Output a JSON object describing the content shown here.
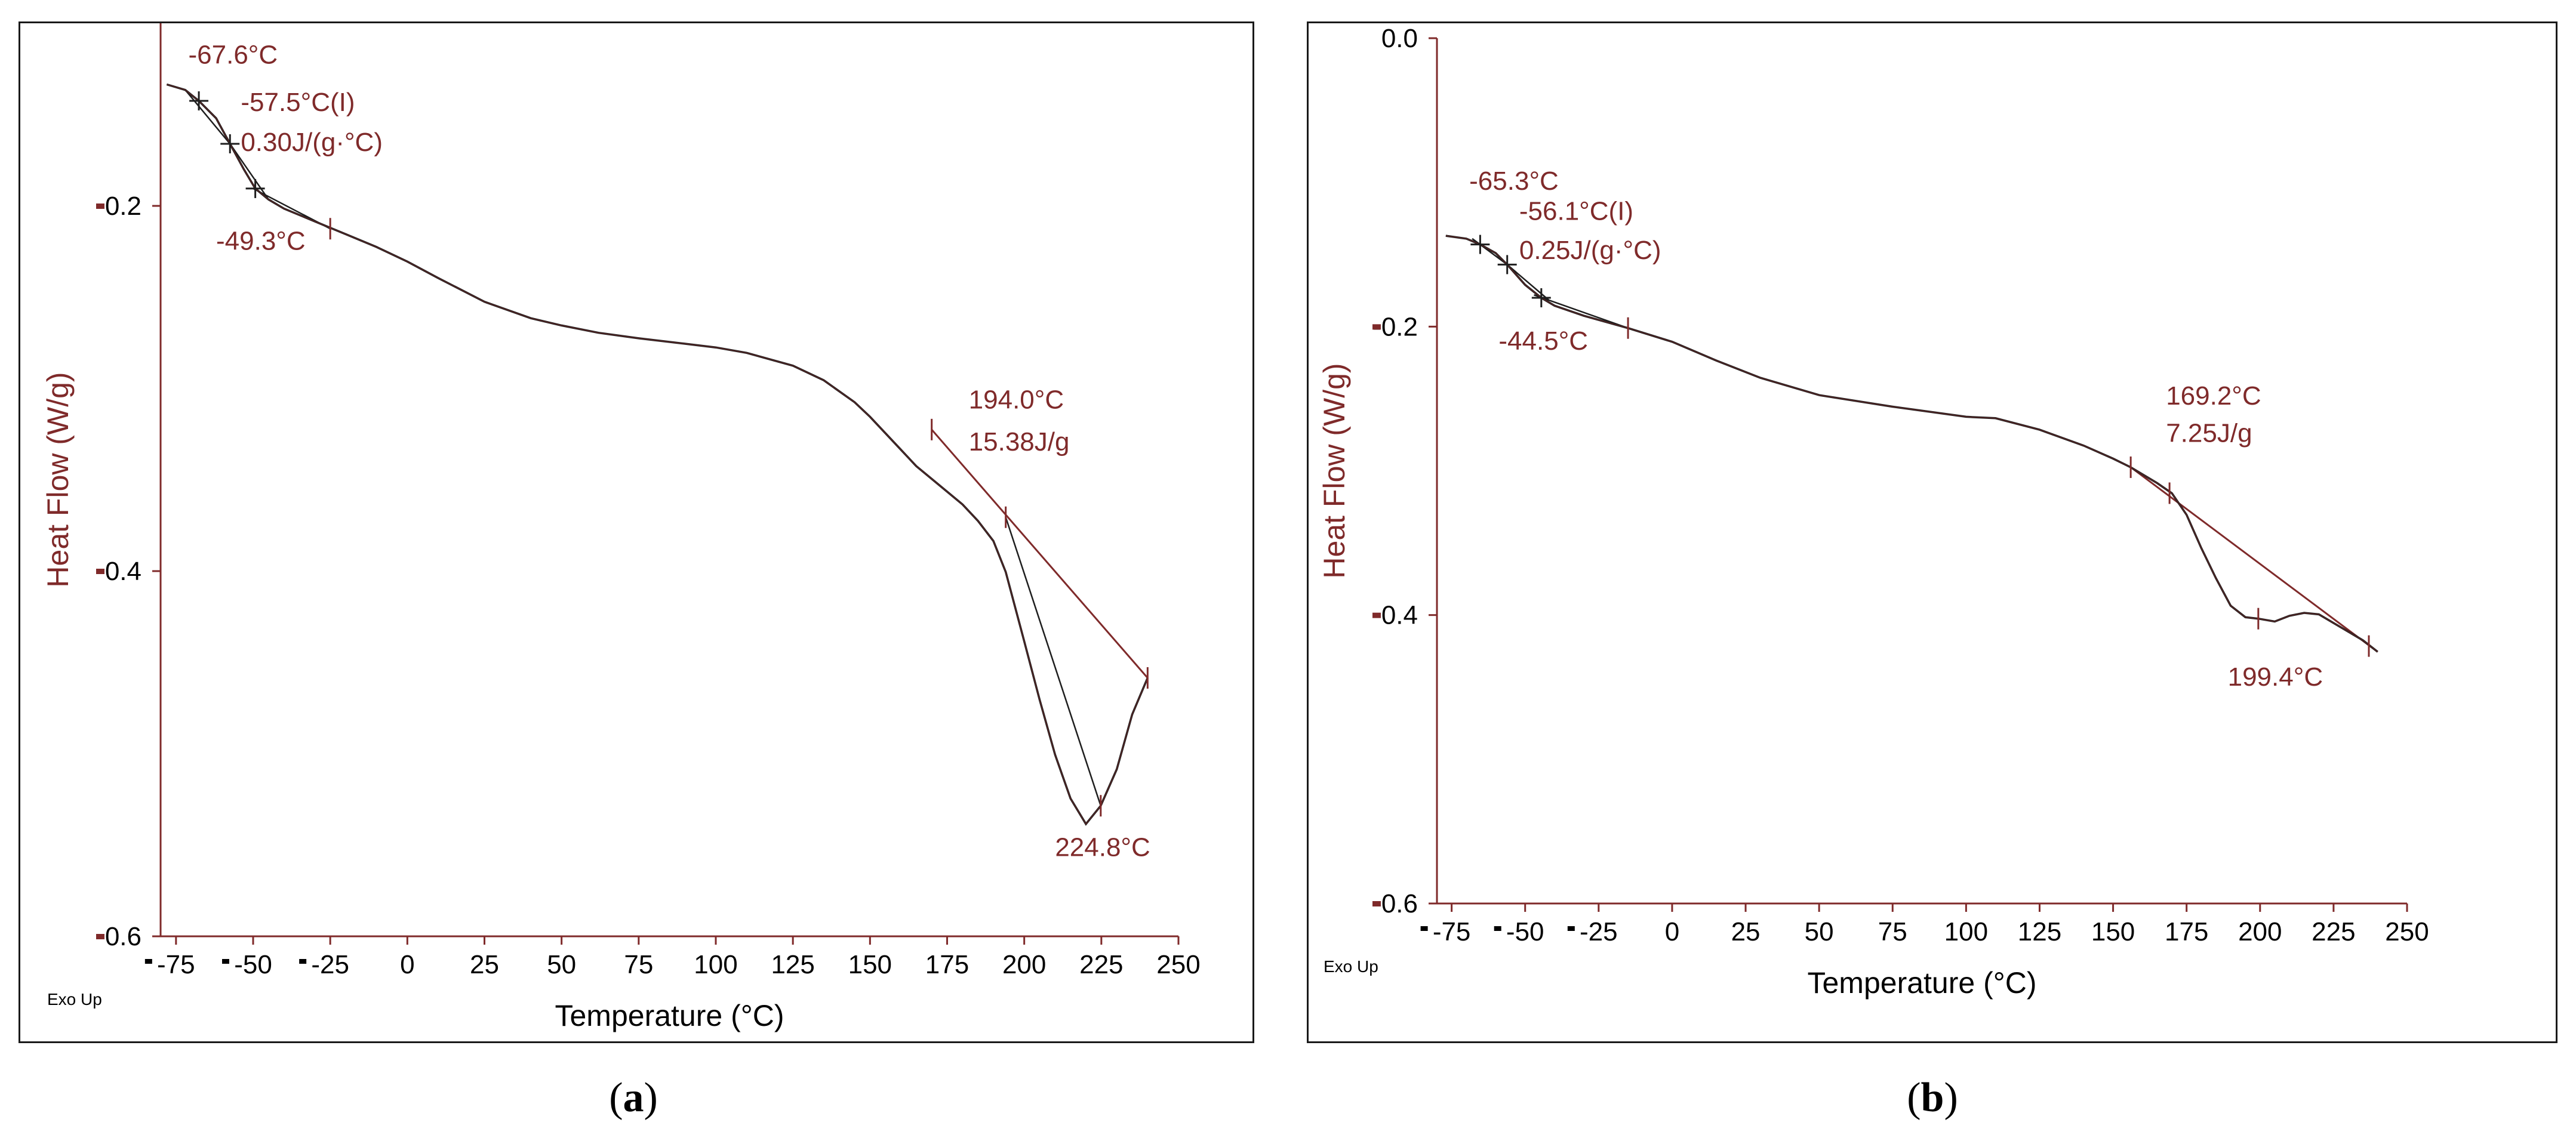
{
  "colors": {
    "curve": "#1e1e1e",
    "accent": "#7f2a2a",
    "axis": "#7f2a2a",
    "tick_text": "#000000"
  },
  "chart_data": [
    {
      "id": "a",
      "type": "line",
      "panel_label": "a",
      "xlabel": "Temperature (°C)",
      "ylabel": "Heat Flow (W/g)",
      "corner_label": "Exo Up",
      "xlim": [
        -80,
        250
      ],
      "ylim": [
        -0.6,
        -0.1
      ],
      "x_ticks": [
        -75,
        -50,
        -25,
        0,
        25,
        50,
        75,
        100,
        125,
        150,
        175,
        200,
        225,
        250
      ],
      "x_tick_labels": [
        "-75",
        "-50",
        "-25",
        "0",
        "25",
        "50",
        "75",
        "100",
        "125",
        "150",
        "175",
        "200",
        "225",
        "250"
      ],
      "y_ticks": [
        -0.2,
        -0.4,
        -0.6
      ],
      "y_tick_labels": [
        "-0.2",
        "-0.4",
        "-0.6"
      ],
      "series": [
        {
          "name": "heat flow",
          "x": [
            -78,
            -72,
            -67.6,
            -62,
            -57.5,
            -53,
            -49.3,
            -45,
            -40,
            -30,
            -20,
            -10,
            0,
            10,
            25,
            40,
            50,
            62,
            75,
            90,
            100,
            110,
            125,
            135,
            145,
            150,
            155,
            160,
            165,
            170,
            175,
            180,
            185,
            190,
            194,
            200,
            205,
            210,
            215,
            220,
            224.8,
            230,
            235,
            240
          ],
          "y": [
            -0.1335,
            -0.1365,
            -0.1425,
            -0.152,
            -0.166,
            -0.18,
            -0.1905,
            -0.1965,
            -0.2015,
            -0.2085,
            -0.2155,
            -0.2225,
            -0.2305,
            -0.2395,
            -0.2525,
            -0.2615,
            -0.2655,
            -0.2695,
            -0.2725,
            -0.2755,
            -0.2775,
            -0.2805,
            -0.2875,
            -0.2955,
            -0.3075,
            -0.3155,
            -0.3245,
            -0.3335,
            -0.3425,
            -0.3495,
            -0.3565,
            -0.3635,
            -0.3725,
            -0.3835,
            -0.4005,
            -0.4385,
            -0.4705,
            -0.5005,
            -0.5245,
            -0.5385,
            -0.5285,
            -0.5085,
            -0.4785,
            -0.4585
          ]
        }
      ],
      "baseline": {
        "x": [
          170,
          240
        ],
        "y": [
          -0.3225,
          -0.4585
        ]
      },
      "tangents": [
        {
          "x": [
            -72,
            -57.5
          ],
          "y": [
            -0.1365,
            -0.166
          ]
        },
        {
          "x": [
            -57.5,
            -45
          ],
          "y": [
            -0.166,
            -0.1965
          ]
        },
        {
          "x": [
            -50,
            -25
          ],
          "y": [
            -0.1905,
            -0.2125
          ]
        },
        {
          "x": [
            194,
            224.8
          ],
          "y": [
            -0.3705,
            -0.5285
          ]
        }
      ],
      "markers": [
        {
          "x": -67.6,
          "y": -0.1425,
          "style": "cross"
        },
        {
          "x": -57.5,
          "y": -0.166,
          "style": "cross"
        },
        {
          "x": -49.3,
          "y": -0.1905,
          "style": "cross"
        },
        {
          "x": -25,
          "y": -0.2125,
          "style": "tick"
        },
        {
          "x": 170,
          "y": -0.3225,
          "style": "tick"
        },
        {
          "x": 194,
          "y": -0.3705,
          "style": "tick"
        },
        {
          "x": 224.8,
          "y": -0.5285,
          "style": "tick"
        },
        {
          "x": 240,
          "y": -0.4585,
          "style": "tick"
        }
      ],
      "annotations": [
        {
          "text": "-67.6°C",
          "x": -71,
          "y": -0.122
        },
        {
          "text": "-57.5°C(I)",
          "x": -54,
          "y": -0.148
        },
        {
          "text": "0.30J/(g·°C)",
          "x": -54,
          "y": -0.17
        },
        {
          "text": "-49.3°C",
          "x": -62,
          "y": -0.224
        },
        {
          "text": "194.0°C",
          "x": 182,
          "y": -0.311
        },
        {
          "text": "15.38J/g",
          "x": 182,
          "y": -0.334
        },
        {
          "text": "224.8°C",
          "x": 210,
          "y": -0.556
        }
      ]
    },
    {
      "id": "b",
      "type": "line",
      "panel_label": "b",
      "xlabel": "Temperature (°C)",
      "ylabel": "Heat Flow (W/g)",
      "corner_label": "Exo Up",
      "xlim": [
        -80,
        250
      ],
      "ylim": [
        -0.6,
        0.0
      ],
      "x_ticks": [
        -75,
        -50,
        -25,
        0,
        25,
        50,
        75,
        100,
        125,
        150,
        175,
        200,
        225,
        250
      ],
      "x_tick_labels": [
        "-75",
        "-50",
        "-25",
        "0",
        "25",
        "50",
        "75",
        "100",
        "125",
        "150",
        "175",
        "200",
        "225",
        "250"
      ],
      "y_ticks": [
        0.0,
        -0.2,
        -0.4,
        -0.6
      ],
      "y_tick_labels": [
        "0.0",
        "-0.2",
        "-0.4",
        "-0.6"
      ],
      "series": [
        {
          "name": "heat flow",
          "x": [
            -77,
            -70,
            -65.3,
            -60,
            -56.1,
            -50,
            -44.5,
            -40,
            -30,
            -15,
            0,
            15,
            30,
            50,
            75,
            100,
            110,
            125,
            140,
            150,
            156,
            165,
            170,
            175,
            180,
            185,
            190,
            195,
            199.4,
            205,
            210,
            215,
            220,
            225,
            230,
            235,
            240
          ],
          "y": [
            -0.137,
            -0.139,
            -0.143,
            -0.149,
            -0.157,
            -0.171,
            -0.18,
            -0.1855,
            -0.1925,
            -0.201,
            -0.2105,
            -0.2235,
            -0.2355,
            -0.2475,
            -0.2555,
            -0.2625,
            -0.2635,
            -0.2715,
            -0.2825,
            -0.2915,
            -0.2975,
            -0.3085,
            -0.3155,
            -0.3305,
            -0.3535,
            -0.3745,
            -0.3935,
            -0.4015,
            -0.4025,
            -0.4045,
            -0.4005,
            -0.3985,
            -0.3995,
            -0.4055,
            -0.4115,
            -0.4175,
            -0.4255
          ]
        }
      ],
      "baseline": {
        "x": [
          156,
          240
        ],
        "y": [
          -0.2975,
          -0.4255
        ]
      },
      "tangents": [
        {
          "x": [
            -68,
            -56.1
          ],
          "y": [
            -0.139,
            -0.157
          ]
        },
        {
          "x": [
            -56.1,
            -42
          ],
          "y": [
            -0.157,
            -0.1815
          ]
        },
        {
          "x": [
            -47,
            -15
          ],
          "y": [
            -0.178,
            -0.201
          ]
        }
      ],
      "markers": [
        {
          "x": -65.3,
          "y": -0.143,
          "style": "cross"
        },
        {
          "x": -56.1,
          "y": -0.157,
          "style": "cross"
        },
        {
          "x": -44.5,
          "y": -0.18,
          "style": "cross"
        },
        {
          "x": -15,
          "y": -0.201,
          "style": "tick"
        },
        {
          "x": 156,
          "y": -0.2975,
          "style": "tick"
        },
        {
          "x": 169.2,
          "y": -0.3155,
          "style": "tick"
        },
        {
          "x": 199.4,
          "y": -0.4025,
          "style": "tick"
        },
        {
          "x": 237,
          "y": -0.4215,
          "style": "tick"
        }
      ],
      "annotations": [
        {
          "text": "-65.3°C",
          "x": -69,
          "y": -0.105
        },
        {
          "text": "-56.1°C(I)",
          "x": -52,
          "y": -0.126
        },
        {
          "text": "0.25J/(g·°C)",
          "x": -52,
          "y": -0.153
        },
        {
          "text": "-44.5°C",
          "x": -59,
          "y": -0.216
        },
        {
          "text": "169.2°C",
          "x": 168,
          "y": -0.254
        },
        {
          "text": "7.25J/g",
          "x": 168,
          "y": -0.28
        },
        {
          "text": "199.4°C",
          "x": 189,
          "y": -0.449
        }
      ]
    }
  ]
}
